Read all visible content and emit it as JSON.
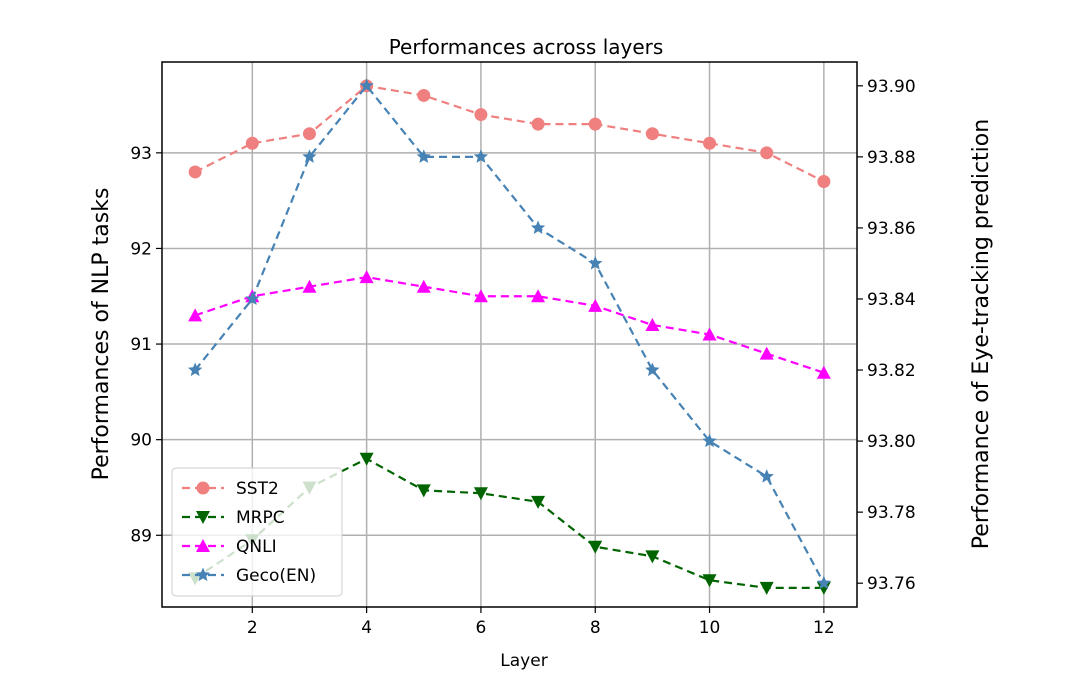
{
  "chart_data": {
    "type": "line",
    "title": "Performances across layers",
    "xlabel": "Layer",
    "ylabel_left": "Performances of NLP tasks",
    "ylabel_right": "Performance of Eye-tracking prediction",
    "x": [
      1,
      2,
      3,
      4,
      5,
      6,
      7,
      8,
      9,
      10,
      11,
      12
    ],
    "x_ticks": [
      2,
      4,
      6,
      8,
      10,
      12
    ],
    "xlim": [
      0.42,
      12.58
    ],
    "ylim_left": [
      88.25,
      93.95
    ],
    "y_ticks_left": [
      89,
      90,
      91,
      92,
      93
    ],
    "ylim_right": [
      93.7533,
      93.9067
    ],
    "y_ticks_right": [
      93.76,
      93.78,
      93.8,
      93.82,
      93.84,
      93.86,
      93.88,
      93.9
    ],
    "y_tick_labels_right": [
      "93.76",
      "93.78",
      "93.80",
      "93.82",
      "93.84",
      "93.86",
      "93.88",
      "93.90"
    ],
    "grid": true,
    "legend_position": "lower-left",
    "series": [
      {
        "name": "SST2",
        "axis": "left",
        "color": "#f08080",
        "marker": "circle",
        "values": [
          92.8,
          93.1,
          93.2,
          93.7,
          93.6,
          93.4,
          93.3,
          93.3,
          93.2,
          93.1,
          93.0,
          92.7
        ]
      },
      {
        "name": "MRPC",
        "axis": "left",
        "color": "#006400",
        "marker": "triangle-down",
        "values": [
          88.55,
          88.95,
          89.5,
          89.8,
          89.47,
          89.44,
          89.35,
          88.88,
          88.78,
          88.53,
          88.45,
          88.45
        ]
      },
      {
        "name": "QNLI",
        "axis": "left",
        "color": "#ff00ff",
        "marker": "triangle-up",
        "values": [
          91.3,
          91.5,
          91.6,
          91.7,
          91.6,
          91.5,
          91.5,
          91.4,
          91.2,
          91.1,
          90.9,
          90.7
        ]
      },
      {
        "name": "Geco(EN)",
        "axis": "right",
        "color": "#4682b4",
        "marker": "star",
        "values": [
          93.82,
          93.84,
          93.88,
          93.9,
          93.88,
          93.88,
          93.86,
          93.85,
          93.82,
          93.8,
          93.79,
          93.76
        ]
      }
    ]
  }
}
